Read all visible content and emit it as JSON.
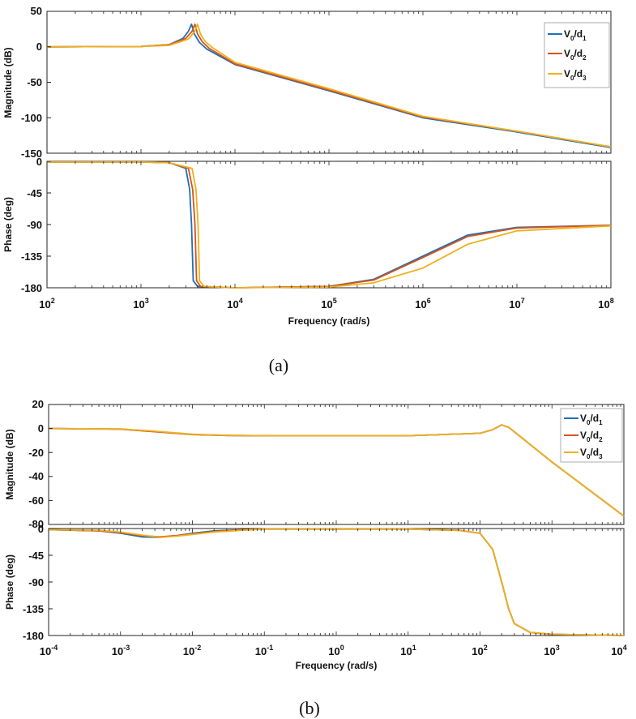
{
  "captions": [
    "(a)",
    "(b)"
  ],
  "chart_data": [
    {
      "id": "a",
      "type": "line",
      "xscale": "log",
      "xlim": [
        100.0,
        100000000.0
      ],
      "xticks": [
        {
          "base": "10",
          "exp": "2",
          "value": 100.0
        },
        {
          "base": "10",
          "exp": "3",
          "value": 1000.0
        },
        {
          "base": "10",
          "exp": "4",
          "value": 10000.0
        },
        {
          "base": "10",
          "exp": "5",
          "value": 100000.0
        },
        {
          "base": "10",
          "exp": "6",
          "value": 1000000.0
        },
        {
          "base": "10",
          "exp": "7",
          "value": 10000000.0
        },
        {
          "base": "10",
          "exp": "8",
          "value": 100000000.0
        }
      ],
      "xlabel": "Frequency  (rad/s)",
      "legend": {
        "placement": "top-right",
        "entries": [
          {
            "main": "V",
            "sub1": "0",
            "mid": "/d",
            "sub2": "1"
          },
          {
            "main": "V",
            "sub1": "0",
            "mid": "/d",
            "sub2": "2"
          },
          {
            "main": "V",
            "sub1": "0",
            "mid": "/d",
            "sub2": "3"
          }
        ]
      },
      "colors": [
        "#1f6fb6",
        "#d95319",
        "#edb120"
      ],
      "magnitude": {
        "ylabel": "Magnitude (dB)",
        "ylim": [
          -150,
          50
        ],
        "yticks": [
          50,
          0,
          -50,
          -100,
          -150
        ],
        "series": [
          {
            "x": [
              100,
              1000,
              2000,
              2800,
              3200,
              3450,
              3700,
              4200,
              5000,
              10000,
              100000,
              1000000,
              10000000,
              100000000
            ],
            "y": [
              0,
              0.5,
              3,
              12,
              22,
              32,
              18,
              6,
              -3,
              -25,
              -62,
              -100,
              -120,
              -142
            ]
          },
          {
            "x": [
              100,
              1000,
              2000,
              3000,
              3500,
              3750,
              4000,
              4500,
              5300,
              10000,
              100000,
              1000000,
              10000000,
              100000000
            ],
            "y": [
              0,
              0.5,
              3,
              12,
              22,
              32,
              18,
              7,
              -2,
              -24,
              -61,
              -99,
              -119,
              -141
            ]
          },
          {
            "x": [
              100,
              1000,
              2000,
              3200,
              3750,
              4000,
              4300,
              4800,
              5600,
              10000,
              100000,
              1000000,
              10000000,
              100000000
            ],
            "y": [
              0,
              0.5,
              2,
              11,
              22,
              32,
              18,
              8,
              0,
              -22,
              -59,
              -98,
              -119,
              -141
            ]
          }
        ]
      },
      "phase": {
        "ylabel": "Phase (deg)",
        "ylim": [
          -180,
          0
        ],
        "yticks": [
          0,
          -45,
          -90,
          -135,
          -180
        ],
        "series": [
          {
            "x": [
              100,
              1000,
              2000,
              3000,
              3300,
              3450,
              3600,
              4000,
              10000,
              100000,
              300000,
              1000000,
              3000000,
              10000000,
              100000000
            ],
            "y": [
              -1,
              -1,
              -2,
              -10,
              -40,
              -90,
              -170,
              -178,
              -180,
              -178,
              -168,
              -135,
              -105,
              -94,
              -91
            ]
          },
          {
            "x": [
              100,
              1000,
              2000,
              3200,
              3550,
              3750,
              3900,
              4300,
              10000,
              100000,
              300000,
              1000000,
              3000000,
              10000000,
              100000000
            ],
            "y": [
              -1,
              -1,
              -2,
              -10,
              -40,
              -90,
              -170,
              -178,
              -180,
              -178,
              -169,
              -137,
              -107,
              -95,
              -91
            ]
          },
          {
            "x": [
              100,
              1000,
              2000,
              3500,
              3850,
              4050,
              4200,
              4700,
              10000,
              100000,
              300000,
              1000000,
              3000000,
              10000000,
              100000000
            ],
            "y": [
              -1,
              -1,
              -2,
              -10,
              -40,
              -90,
              -170,
              -178,
              -180,
              -179,
              -173,
              -152,
              -118,
              -99,
              -92
            ]
          }
        ]
      }
    },
    {
      "id": "b",
      "type": "line",
      "xscale": "log",
      "xlim": [
        0.0001,
        10000.0
      ],
      "xticks": [
        {
          "base": "10",
          "exp": "-4",
          "value": 0.0001
        },
        {
          "base": "10",
          "exp": "-3",
          "value": 0.001
        },
        {
          "base": "10",
          "exp": "-2",
          "value": 0.01
        },
        {
          "base": "10",
          "exp": "-1",
          "value": 0.1
        },
        {
          "base": "10",
          "exp": "0",
          "value": 1
        },
        {
          "base": "10",
          "exp": "1",
          "value": 10
        },
        {
          "base": "10",
          "exp": "2",
          "value": 100
        },
        {
          "base": "10",
          "exp": "3",
          "value": 1000
        },
        {
          "base": "10",
          "exp": "4",
          "value": 10000
        }
      ],
      "xlabel": "Frequency  (rad/s)",
      "legend": {
        "placement": "top-right",
        "entries": [
          {
            "main": "V",
            "sub1": "0",
            "mid": "/d",
            "sub2": "1"
          },
          {
            "main": "V",
            "sub1": "0",
            "mid": "/d",
            "sub2": "2"
          },
          {
            "main": "V",
            "sub1": "0",
            "mid": "/d",
            "sub2": "3"
          }
        ]
      },
      "colors": [
        "#1f6fb6",
        "#d95319",
        "#edb120"
      ],
      "magnitude": {
        "ylabel": "Magnitude (dB)",
        "ylim": [
          -80,
          20
        ],
        "yticks": [
          20,
          0,
          -20,
          -40,
          -60,
          -80
        ],
        "series": [
          {
            "x": [
              0.0001,
              0.001,
              0.003,
              0.01,
              0.03,
              0.1,
              1,
              10,
              100,
              150,
              200,
              250,
              350,
              1000,
              10000
            ],
            "y": [
              0,
              -0.5,
              -2.5,
              -5,
              -5.8,
              -6,
              -6,
              -6,
              -4,
              -1,
              3,
              1,
              -6,
              -28,
              -73
            ]
          },
          {
            "x": [
              0.0001,
              0.001,
              0.003,
              0.01,
              0.03,
              0.1,
              1,
              10,
              100,
              150,
              200,
              250,
              350,
              1000,
              10000
            ],
            "y": [
              0,
              -0.6,
              -2.7,
              -5.1,
              -5.8,
              -6,
              -6,
              -6,
              -4,
              -1,
              3,
              1,
              -6,
              -28,
              -73
            ]
          },
          {
            "x": [
              0.0001,
              0.001,
              0.003,
              0.01,
              0.03,
              0.1,
              1,
              10,
              100,
              150,
              200,
              250,
              350,
              1000,
              10000
            ],
            "y": [
              0,
              -0.4,
              -2.2,
              -4.8,
              -5.7,
              -6,
              -6,
              -6,
              -4,
              -1,
              3,
              1,
              -6,
              -28,
              -73
            ]
          }
        ]
      },
      "phase": {
        "ylabel": "Phase (deg)",
        "ylim": [
          -180,
          0
        ],
        "yticks": [
          0,
          -45,
          -90,
          -135,
          -180
        ],
        "series": [
          {
            "x": [
              0.0001,
              0.0005,
              0.001,
              0.002,
              0.0035,
              0.006,
              0.01,
              0.02,
              0.05,
              0.1,
              1,
              10,
              50,
              100,
              150,
              200,
              250,
              300,
              500,
              1000,
              10000
            ],
            "y": [
              -2,
              -4,
              -8,
              -14,
              -15,
              -12,
              -8,
              -4,
              -2,
              -1,
              -1,
              -1,
              -3,
              -8,
              -35,
              -90,
              -135,
              -160,
              -175,
              -178,
              -180
            ]
          },
          {
            "x": [
              0.0001,
              0.0005,
              0.001,
              0.002,
              0.0035,
              0.006,
              0.01,
              0.02,
              0.05,
              0.1,
              1,
              10,
              50,
              100,
              150,
              200,
              250,
              300,
              500,
              1000,
              10000
            ],
            "y": [
              -2,
              -4,
              -7,
              -12,
              -14,
              -12,
              -9,
              -5,
              -2,
              -1,
              -1,
              -1,
              -3,
              -8,
              -35,
              -90,
              -135,
              -160,
              -175,
              -178,
              -180
            ]
          },
          {
            "x": [
              0.0001,
              0.0005,
              0.001,
              0.002,
              0.0035,
              0.006,
              0.01,
              0.02,
              0.05,
              0.1,
              1,
              10,
              50,
              100,
              150,
              200,
              250,
              300,
              500,
              1000,
              10000
            ],
            "y": [
              -2,
              -3,
              -6,
              -11,
              -15,
              -13,
              -10,
              -6,
              -3,
              -1,
              -1,
              -1,
              -3,
              -8,
              -35,
              -90,
              -135,
              -160,
              -175,
              -178,
              -180
            ]
          }
        ]
      }
    }
  ]
}
